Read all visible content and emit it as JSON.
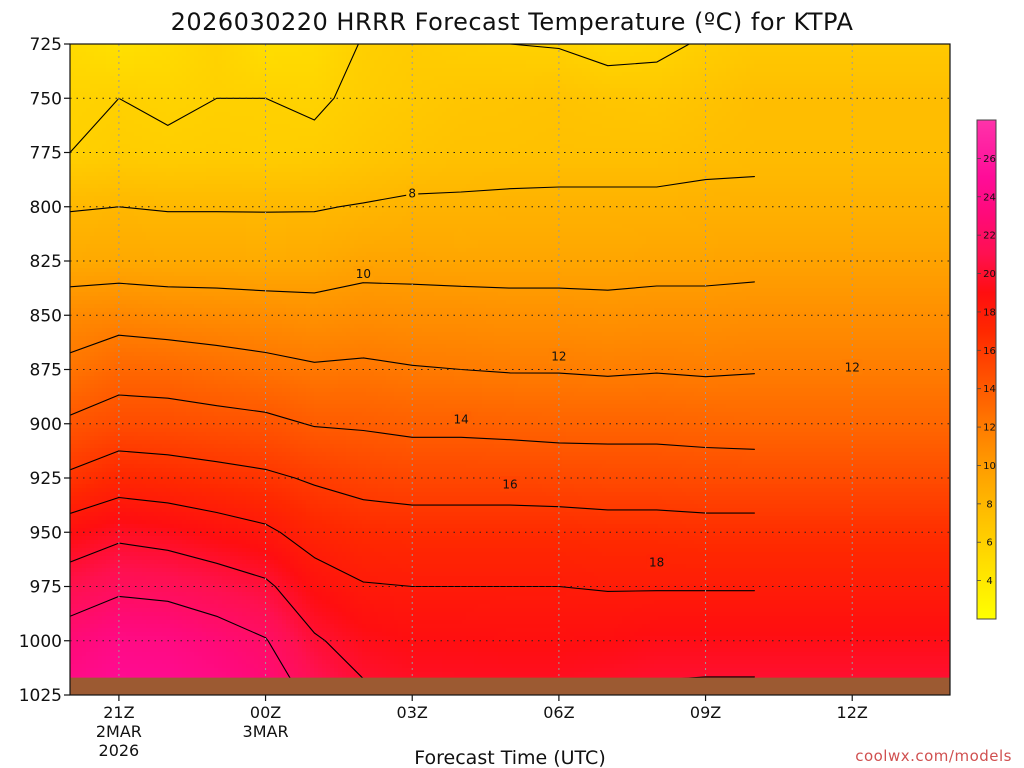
{
  "title": "2026030220 HRRR Forecast Temperature (ºC) for KTPA",
  "xlabel": "Forecast Time (UTC)",
  "credit": "coolwx.com/models",
  "colors": {
    "background": "#ffffff",
    "ground": "#9c5a32",
    "contour": "#000000",
    "grid": "#9a9a9a"
  },
  "chart_data": {
    "type": "heatmap",
    "title": "2026030220 HRRR Forecast Temperature (ºC) for KTPA",
    "xlabel": "Forecast Time (UTC)",
    "ylabel": "",
    "x_hours": [
      -1,
      0,
      1,
      2,
      3,
      4,
      5,
      6,
      7,
      8,
      9,
      10,
      11,
      12,
      13
    ],
    "x_ticks": [
      {
        "hour": 0,
        "label": "21Z",
        "sub": [
          "2MAR",
          "2026"
        ]
      },
      {
        "hour": 3,
        "label": "00Z",
        "sub": [
          "3MAR"
        ]
      },
      {
        "hour": 6,
        "label": "03Z",
        "sub": []
      },
      {
        "hour": 9,
        "label": "06Z",
        "sub": []
      },
      {
        "hour": 12,
        "label": "09Z",
        "sub": []
      },
      {
        "hour": 15,
        "label": "12Z",
        "sub": []
      }
    ],
    "xlim": [
      -1,
      17
    ],
    "y_levels": [
      725,
      750,
      775,
      800,
      825,
      850,
      875,
      900,
      925,
      950,
      975,
      1000,
      1025
    ],
    "ylim": [
      725,
      1025
    ],
    "y_reversed": true,
    "surface_pressure_hpa": 1017,
    "contour_levels": [
      6,
      8,
      10,
      12,
      14,
      16,
      18,
      20,
      22
    ],
    "contour_labels": [
      {
        "value": "8",
        "hour": 6.0,
        "p": 794
      },
      {
        "value": "10",
        "hour": 5.0,
        "p": 831
      },
      {
        "value": "12",
        "hour": 9.0,
        "p": 869
      },
      {
        "value": "12",
        "hour": 15.0,
        "p": 874
      },
      {
        "value": "14",
        "hour": 7.0,
        "p": 898
      },
      {
        "value": "16",
        "hour": 8.0,
        "p": 928
      },
      {
        "value": "18",
        "hour": 11.0,
        "p": 964
      }
    ],
    "colorbar": {
      "ticks": [
        4,
        6,
        8,
        10,
        12,
        14,
        16,
        18,
        20,
        22,
        24,
        26
      ],
      "min": 2,
      "max": 28,
      "stops": [
        {
          "v": 2,
          "color": "#ffff00"
        },
        {
          "v": 5,
          "color": "#ffdd00"
        },
        {
          "v": 7,
          "color": "#ffc400"
        },
        {
          "v": 9,
          "color": "#ffaa00"
        },
        {
          "v": 11,
          "color": "#ff8c00"
        },
        {
          "v": 13,
          "color": "#ff6a00"
        },
        {
          "v": 15,
          "color": "#ff4a00"
        },
        {
          "v": 17,
          "color": "#ff2800"
        },
        {
          "v": 19,
          "color": "#ff0e10"
        },
        {
          "v": 21,
          "color": "#ff1050"
        },
        {
          "v": 23,
          "color": "#ff0a78"
        },
        {
          "v": 25,
          "color": "#ff0c98"
        },
        {
          "v": 28,
          "color": "#ff33aa"
        }
      ]
    },
    "temperature_rows": [
      {
        "p": 725,
        "values": [
          5.2,
          4.7,
          5.1,
          5.8,
          4.9,
          5.1,
          6.1,
          6.4,
          6.1,
          6.0,
          5.9,
          5.4,
          5.6,
          6.2,
          6.6
        ]
      },
      {
        "p": 750,
        "values": [
          5.8,
          6.0,
          5.8,
          6.0,
          6.0,
          5.8,
          6.3,
          6.6,
          6.9,
          7.0,
          7.1,
          6.9,
          6.8,
          7.1,
          7.5
        ]
      },
      {
        "p": 775,
        "values": [
          6.0,
          6.3,
          6.2,
          6.3,
          6.2,
          6.3,
          6.7,
          7.0,
          7.2,
          7.2,
          7.3,
          7.3,
          7.3,
          7.5,
          7.6
        ]
      },
      {
        "p": 800,
        "values": [
          7.9,
          8.0,
          7.9,
          7.9,
          7.9,
          7.9,
          8.1,
          8.3,
          8.3,
          8.4,
          8.4,
          8.4,
          8.4,
          8.5,
          8.5
        ]
      },
      {
        "p": 825,
        "values": [
          9.0,
          9.1,
          9.0,
          9.0,
          8.9,
          9.0,
          9.4,
          9.4,
          9.3,
          9.3,
          9.3,
          9.3,
          9.4,
          9.4,
          9.5
        ]
      },
      {
        "p": 850,
        "values": [
          11.1,
          11.3,
          11.1,
          11.0,
          10.9,
          10.7,
          10.9,
          10.8,
          10.8,
          10.7,
          10.7,
          10.6,
          10.7,
          10.7,
          10.8
        ]
      },
      {
        "p": 875,
        "values": [
          12.4,
          13.2,
          13.1,
          12.8,
          12.5,
          12.2,
          12.3,
          12.1,
          12.0,
          11.9,
          11.9,
          11.8,
          11.9,
          11.8,
          11.9
        ]
      },
      {
        "p": 900,
        "values": [
          14.3,
          14.9,
          14.8,
          14.6,
          14.4,
          13.9,
          13.8,
          13.6,
          13.6,
          13.5,
          13.4,
          13.4,
          13.4,
          13.3,
          13.2
        ]
      },
      {
        "p": 925,
        "values": [
          16.3,
          17.1,
          16.9,
          16.6,
          16.3,
          15.8,
          15.4,
          15.2,
          15.2,
          15.2,
          15.1,
          15.0,
          15.0,
          14.9,
          14.9
        ]
      },
      {
        "p": 950,
        "values": [
          18.9,
          19.6,
          19.3,
          18.8,
          18.3,
          17.3,
          16.9,
          16.8,
          16.8,
          16.8,
          16.8,
          16.7,
          16.7,
          16.6,
          16.6
        ]
      },
      {
        "p": 975,
        "values": [
          20.9,
          21.6,
          21.4,
          20.9,
          20.3,
          18.8,
          18.1,
          18.0,
          18.0,
          18.0,
          18.0,
          17.9,
          17.9,
          17.9,
          17.9
        ]
      },
      {
        "p": 1000,
        "values": [
          22.9,
          23.8,
          23.6,
          22.9,
          22.1,
          20.2,
          19.3,
          19.0,
          19.0,
          18.9,
          18.9,
          19.0,
          19.2,
          19.2,
          19.2
        ]
      },
      {
        "p": 1025,
        "values": [
          24.2,
          25.0,
          24.8,
          24.1,
          23.2,
          21.5,
          20.3,
          19.9,
          19.8,
          19.8,
          19.8,
          20.0,
          20.3,
          20.4,
          20.4
        ]
      }
    ]
  }
}
